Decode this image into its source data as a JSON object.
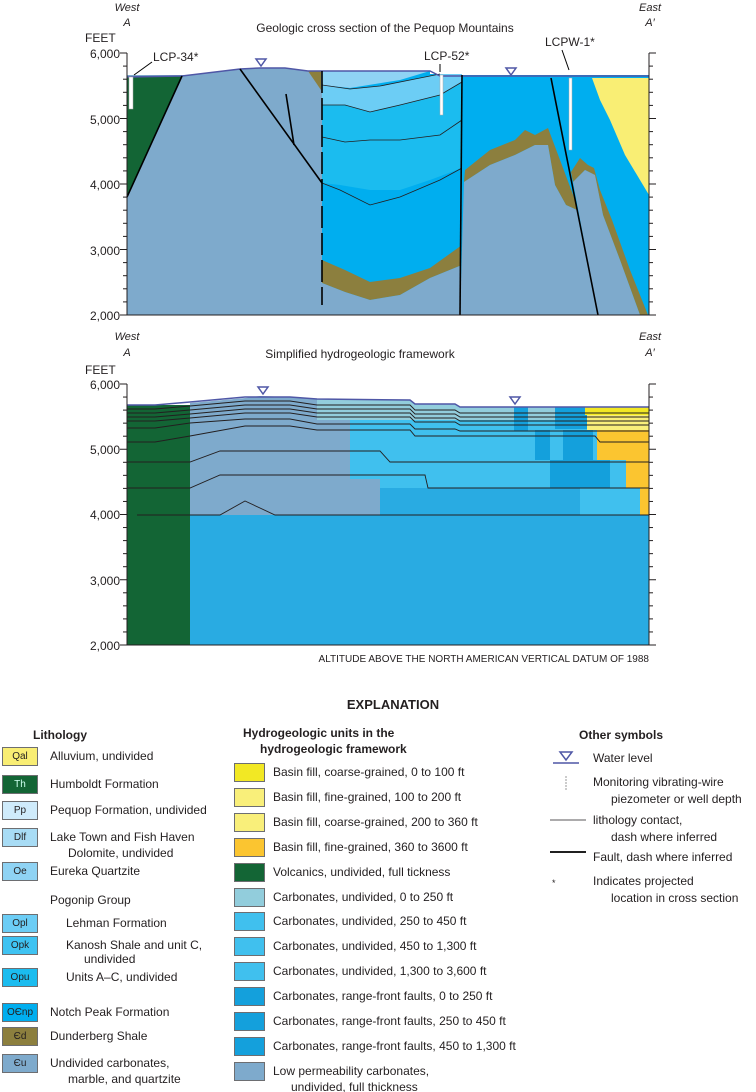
{
  "top": {
    "title": "Geologic cross section of the Pequop Mountains",
    "west": "West",
    "a": "A",
    "east": "East",
    "a_prime": "A′",
    "feet": "FEET",
    "ticks": [
      "6,000",
      "5,000",
      "4,000",
      "3,000",
      "2,000"
    ],
    "wells": [
      "LCP-34*",
      "LCP-52*",
      "LCPW-1*"
    ]
  },
  "bottom": {
    "title": "Simplified hydrogeologic framework",
    "west": "West",
    "a": "A",
    "east": "East",
    "a_prime": "A′",
    "feet": "FEET",
    "ticks": [
      "6,000",
      "5,000",
      "4,000",
      "3,000",
      "2,000"
    ],
    "datum": "ALTITUDE ABOVE THE NORTH AMERICAN VERTICAL DATUM OF 1988"
  },
  "explanation": {
    "title": "EXPLANATION",
    "lithology": {
      "header": "Lithology",
      "group": "Pogonip Group",
      "items": [
        {
          "code": "Qal",
          "label": "Alluvium, undivided",
          "color": "#f9ee74"
        },
        {
          "code": "Th",
          "label": "Humboldt Formation",
          "color": "#136535"
        },
        {
          "code": "Pp",
          "label": "Pequop Formation, undivided",
          "color": "#cfebfb"
        },
        {
          "code": "Dlf",
          "label": "Lake Town and Fish Haven",
          "label2": "Dolomite, undivided",
          "color": "#a8dcf5"
        },
        {
          "code": "Oe",
          "label": "Eureka Quartzite",
          "color": "#8fd3f4"
        },
        {
          "code": "Opl",
          "label": "Lehman Formation",
          "color": "#6ccdf5"
        },
        {
          "code": "Opk",
          "label": "Kanosh Shale and unit C,",
          "label2": "undivided",
          "color": "#3fc3f2"
        },
        {
          "code": "Opu",
          "label": "Units A–C, undivided",
          "color": "#1bbcef"
        },
        {
          "code": "OЄnp",
          "label": "Notch Peak Formation",
          "color": "#00aeef"
        },
        {
          "code": "Єd",
          "label": "Dunderberg Shale",
          "color": "#8c7f3e"
        },
        {
          "code": "Єu",
          "label": "Undivided carbonates,",
          "label2": "marble, and quartzite",
          "color": "#7eaacc"
        }
      ]
    },
    "hydro": {
      "header1": "Hydrogeologic units in the",
      "header2": "hydrogeologic framework",
      "items": [
        {
          "label": "Basin fill, coarse-grained, 0 to 100 ft",
          "color": "#f2e824"
        },
        {
          "label": "Basin fill, fine-grained, 100 to 200 ft",
          "color": "#f9ef7a"
        },
        {
          "label": "Basin fill, coarse-grained, 200 to 360 ft",
          "color": "#f9ef7a"
        },
        {
          "label": "Basin fill, fine-grained, 360 to 3600 ft",
          "color": "#fbc530"
        },
        {
          "label": "Volcanics, undivided, full tickness",
          "color": "#136535"
        },
        {
          "label": "Carbonates, undivided, 0 to 250 ft",
          "color": "#92cddc"
        },
        {
          "label": "Carbonates, undivided, 250 to 450 ft",
          "color": "#40c0ee"
        },
        {
          "label": "Carbonates, undivided, 450 to 1,300 ft",
          "color": "#40c0ee"
        },
        {
          "label": "Carbonates, undivided, 1,300 to 3,600 ft",
          "color": "#40c0ee"
        },
        {
          "label": "Carbonates, range-front faults, 0 to 250 ft",
          "color": "#14a0dc"
        },
        {
          "label": "Carbonates, range-front faults, 250 to 450 ft",
          "color": "#14a0dc"
        },
        {
          "label": "Carbonates, range-front faults, 450 to 1,300 ft",
          "color": "#14a0dc"
        },
        {
          "label": "Low permeability carbonates,",
          "label2": "undivided, full thickness",
          "color": "#7eaacc"
        }
      ]
    },
    "other": {
      "header": "Other symbols",
      "water": "Water level",
      "monitor1": "Monitoring vibrating-wire",
      "monitor2": "piezometer or well depth",
      "contact1": "lithology contact,",
      "contact2": "dash where inferred",
      "fault": "Fault, dash where inferred",
      "proj1": "Indicates projected",
      "proj2": "location in cross section"
    }
  }
}
